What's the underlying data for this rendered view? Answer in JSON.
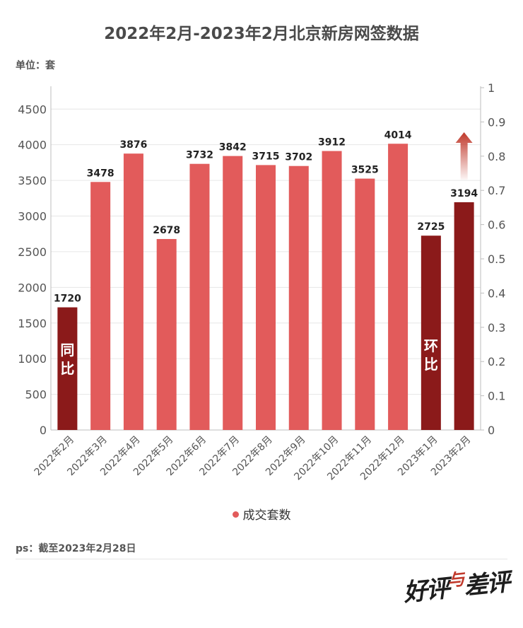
{
  "title": "2022年2月-2023年2月北京新房网签数据",
  "unit_label": "单位：套",
  "note": "ps：截至2023年2月28日",
  "logo": {
    "part1": "好评",
    "accent": "与",
    "part2": "差评"
  },
  "annotations": {
    "yoy": "同比",
    "mom": "环比"
  },
  "colors": {
    "bar": "#e25b5b",
    "highlight": "#8b1a1a",
    "arrow": "#c0392b",
    "grid": "#e6e6e6",
    "axis_text": "#555555"
  },
  "chart_data": {
    "type": "bar",
    "categories": [
      "2022年2月",
      "2022年3月",
      "2022年4月",
      "2022年5月",
      "2022年6月",
      "2022年7月",
      "2022年8月",
      "2022年9月",
      "2022年10月",
      "2022年11月",
      "2022年12月",
      "2023年1月",
      "2023年2月"
    ],
    "series": [
      {
        "name": "成交套数",
        "values": [
          1720,
          3478,
          3876,
          2678,
          3732,
          3842,
          3715,
          3702,
          3912,
          3525,
          4014,
          2725,
          3194
        ]
      }
    ],
    "highlighted_categories": [
      "2022年2月",
      "2023年1月",
      "2023年2月"
    ],
    "ylim": [
      0,
      4800
    ],
    "y_ticks": [
      0,
      500,
      1000,
      1500,
      2000,
      2500,
      3000,
      3500,
      4000,
      4500
    ],
    "y2lim": [
      0,
      1
    ],
    "y2_ticks": [
      "0",
      "0.1",
      "0.2",
      "0.3",
      "0.4",
      "0.5",
      "0.6",
      "0.7",
      "0.8",
      "0.9",
      "1"
    ],
    "legend": "bottom",
    "grid": true
  }
}
